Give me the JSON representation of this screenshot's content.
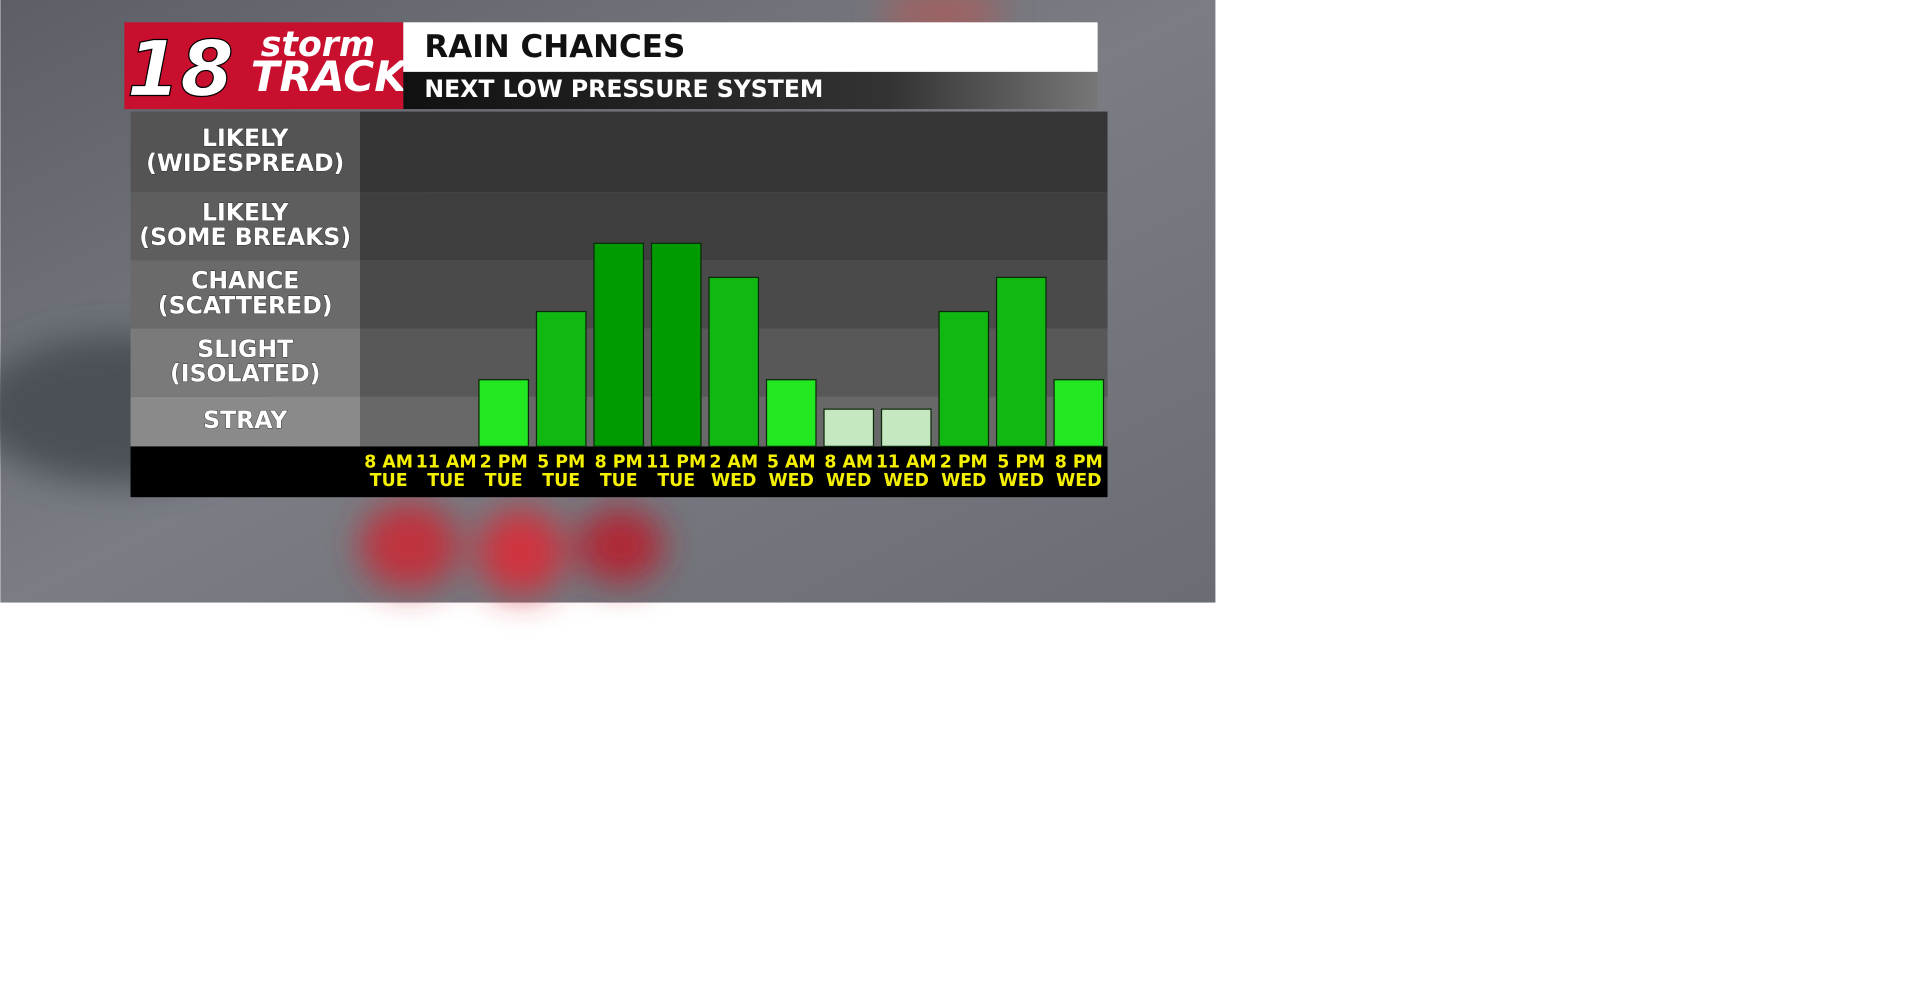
{
  "chart_data": {
    "type": "bar",
    "logo": {
      "number": "18",
      "word_top": "storm",
      "word_bottom": "TRACK"
    },
    "title": "RAIN CHANCES",
    "subtitle": "NEXT LOW PRESSURE SYSTEM",
    "levels": [
      [
        "STRAY"
      ],
      [
        "SLIGHT",
        "(ISOLATED)"
      ],
      [
        "CHANCE",
        "(SCATTERED)"
      ],
      [
        "LIKELY",
        "(SOME BREAKS)"
      ],
      [
        "LIKELY",
        "(WIDESPREAD)"
      ]
    ],
    "categories": [
      "8 AM",
      "11 AM",
      "2 PM",
      "5 PM",
      "8 PM",
      "11 PM",
      "2 AM",
      "5 AM",
      "8 AM",
      "11 AM",
      "2 PM",
      "5 PM",
      "8 PM"
    ],
    "days": [
      "TUE",
      "TUE",
      "TUE",
      "TUE",
      "TUE",
      "TUE",
      "WED",
      "WED",
      "WED",
      "WED",
      "WED",
      "WED",
      "WED"
    ],
    "values": [
      0,
      0,
      1.25,
      2.25,
      3.25,
      3.25,
      2.75,
      1.25,
      0.75,
      0.75,
      2.25,
      2.75,
      1.25
    ],
    "colors": [
      "#22e822",
      "#22e822",
      "#22e822",
      "#12b812",
      "#019a01",
      "#019a01",
      "#12b812",
      "#22e822",
      "#c6e8c0",
      "#c6e8c0",
      "#12b812",
      "#12b812",
      "#22e822"
    ],
    "ylim": [
      0,
      5
    ],
    "yticks": [
      0,
      1,
      2,
      3,
      4,
      5
    ],
    "grid": false
  }
}
